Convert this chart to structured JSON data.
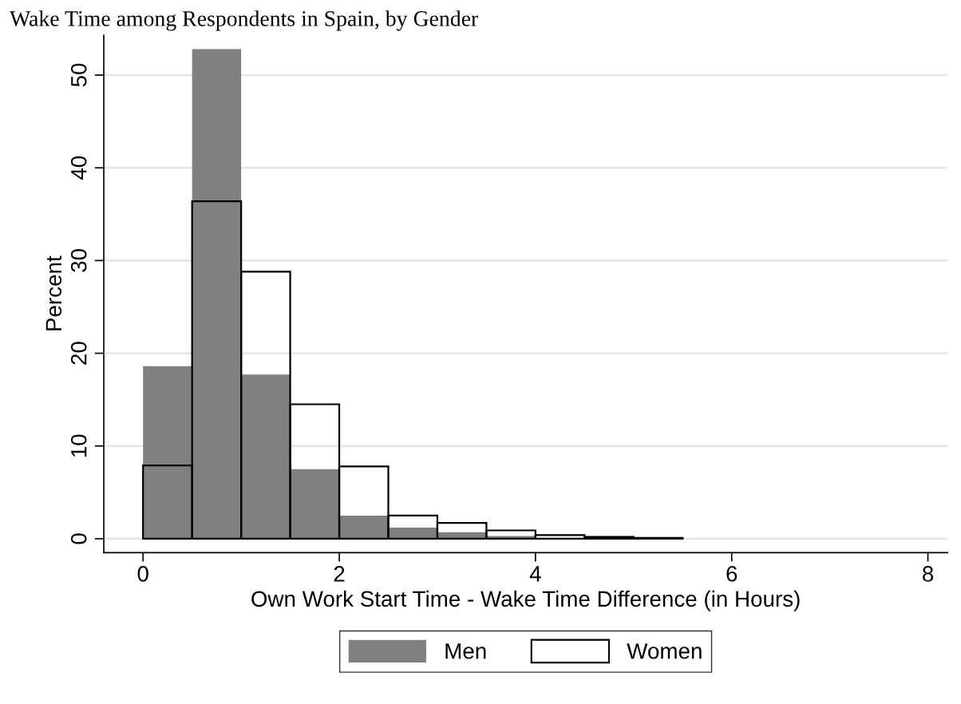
{
  "chart_data": {
    "type": "histogram",
    "title": "Wake Time among Respondents in Spain, by Gender",
    "xlabel": "Own Work Start Time - Wake Time Difference (in Hours)",
    "ylabel": "Percent",
    "bins": [
      0,
      0.5,
      1,
      1.5,
      2,
      2.5,
      3,
      3.5,
      4,
      4.5,
      5,
      5.5
    ],
    "series": [
      {
        "name": "Men",
        "color": "#808080",
        "values": [
          18.6,
          52.8,
          17.7,
          7.5,
          2.5,
          1.2,
          0.7,
          0.3,
          null,
          0,
          0
        ]
      },
      {
        "name": "Women",
        "color": "#000000",
        "values": [
          7.9,
          36.4,
          28.8,
          14.5,
          7.8,
          2.5,
          1.7,
          0.9,
          0.4,
          0.2,
          0.1
        ]
      }
    ],
    "xlim": [
      -0.4,
      8.2
    ],
    "xticks": [
      0,
      2,
      4,
      6,
      8
    ],
    "ylim": [
      -1.5,
      54.3
    ],
    "yticks": [
      0,
      10,
      20,
      30,
      40,
      50
    ],
    "grid": "y",
    "legend": "bottom"
  }
}
